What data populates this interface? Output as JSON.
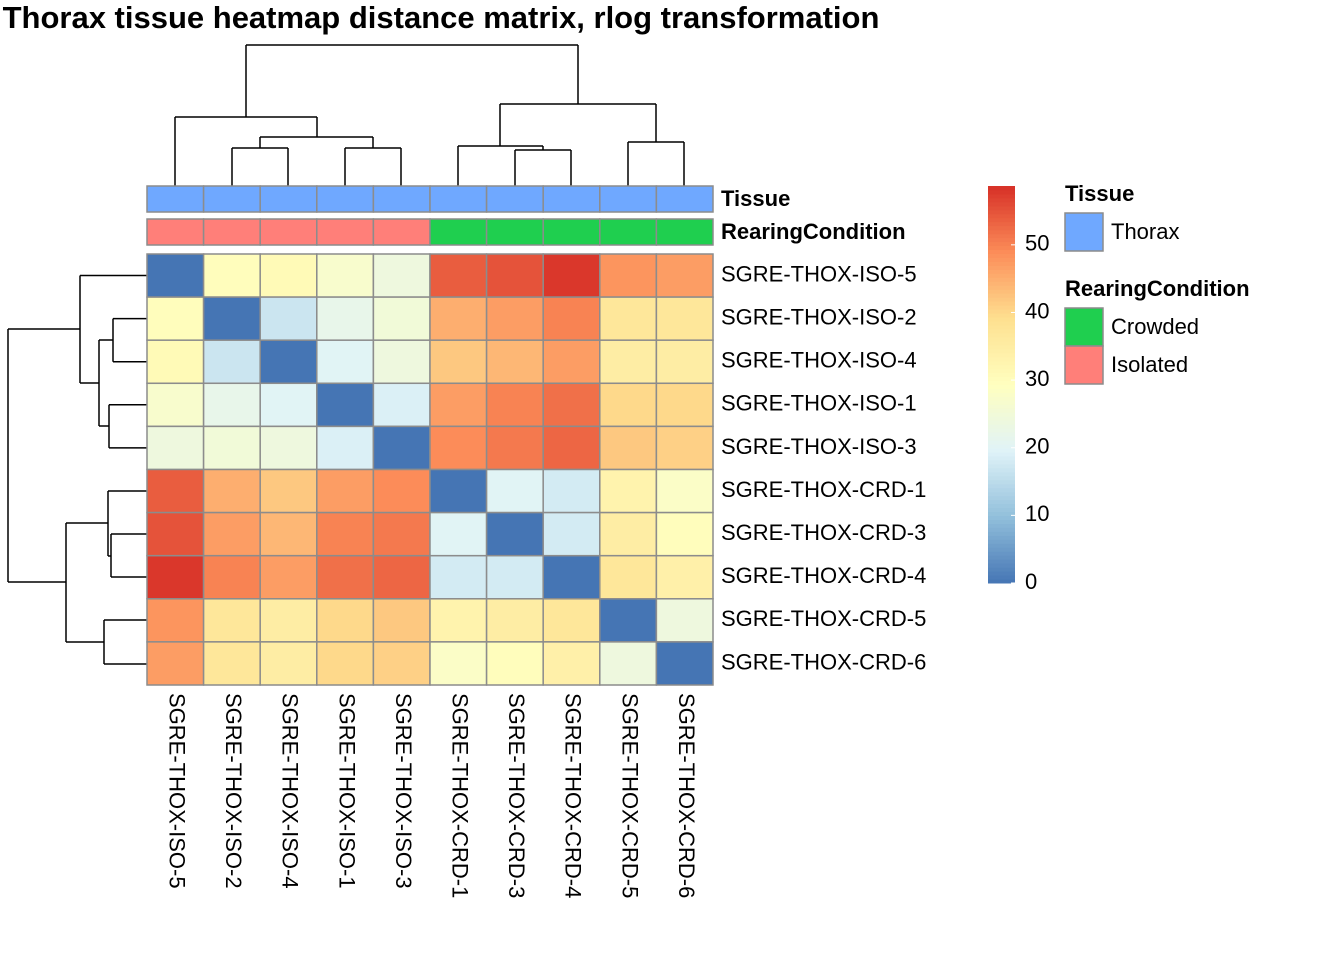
{
  "chart_data": {
    "type": "heatmap",
    "title": "Thorax tissue heatmap distance matrix, rlog transformation",
    "rows": [
      "SGRE-THOX-ISO-5",
      "SGRE-THOX-ISO-2",
      "SGRE-THOX-ISO-4",
      "SGRE-THOX-ISO-1",
      "SGRE-THOX-ISO-3",
      "SGRE-THOX-CRD-1",
      "SGRE-THOX-CRD-3",
      "SGRE-THOX-CRD-4",
      "SGRE-THOX-CRD-5",
      "SGRE-THOX-CRD-6"
    ],
    "columns": [
      "SGRE-THOX-ISO-5",
      "SGRE-THOX-ISO-2",
      "SGRE-THOX-ISO-4",
      "SGRE-THOX-ISO-1",
      "SGRE-THOX-ISO-3",
      "SGRE-THOX-CRD-1",
      "SGRE-THOX-CRD-3",
      "SGRE-THOX-CRD-4",
      "SGRE-THOX-CRD-5",
      "SGRE-THOX-CRD-6"
    ],
    "values": [
      [
        0,
        30,
        31,
        27,
        24,
        54,
        55,
        58,
        48,
        47
      ],
      [
        30,
        0,
        17,
        22,
        25,
        45,
        47,
        50,
        37,
        37
      ],
      [
        31,
        17,
        0,
        20,
        24,
        42,
        44,
        47,
        35,
        35
      ],
      [
        27,
        22,
        20,
        0,
        19,
        47,
        50,
        52,
        40,
        40
      ],
      [
        24,
        25,
        24,
        19,
        0,
        49,
        51,
        53,
        42,
        41
      ],
      [
        54,
        45,
        42,
        47,
        49,
        0,
        20,
        18,
        33,
        28
      ],
      [
        55,
        47,
        44,
        50,
        51,
        20,
        0,
        18,
        35,
        30
      ],
      [
        58,
        50,
        47,
        52,
        53,
        18,
        18,
        0,
        37,
        34
      ],
      [
        48,
        37,
        35,
        40,
        42,
        33,
        35,
        37,
        0,
        24
      ],
      [
        47,
        37,
        35,
        40,
        41,
        28,
        30,
        34,
        24,
        0
      ]
    ],
    "zlim": [
      0,
      58.7
    ],
    "ticks": [
      0,
      10,
      20,
      30,
      40,
      50
    ],
    "palette": [
      "#4575B4",
      "#91BFDB",
      "#E0F3F8",
      "#FFFFBF",
      "#FEE090",
      "#FC8D59",
      "#D73027"
    ],
    "annotations": [
      {
        "name": "Tissue",
        "levels": [
          {
            "label": "Thorax",
            "color": "#6FA8FF"
          }
        ],
        "values": [
          0,
          0,
          0,
          0,
          0,
          0,
          0,
          0,
          0,
          0
        ]
      },
      {
        "name": "RearingCondition",
        "levels": [
          {
            "label": "Crowded",
            "color": "#1FCF4F"
          },
          {
            "label": "Isolated",
            "color": "#FF7F79"
          }
        ],
        "values": [
          1,
          1,
          1,
          1,
          1,
          0,
          0,
          0,
          0,
          0
        ]
      }
    ]
  }
}
